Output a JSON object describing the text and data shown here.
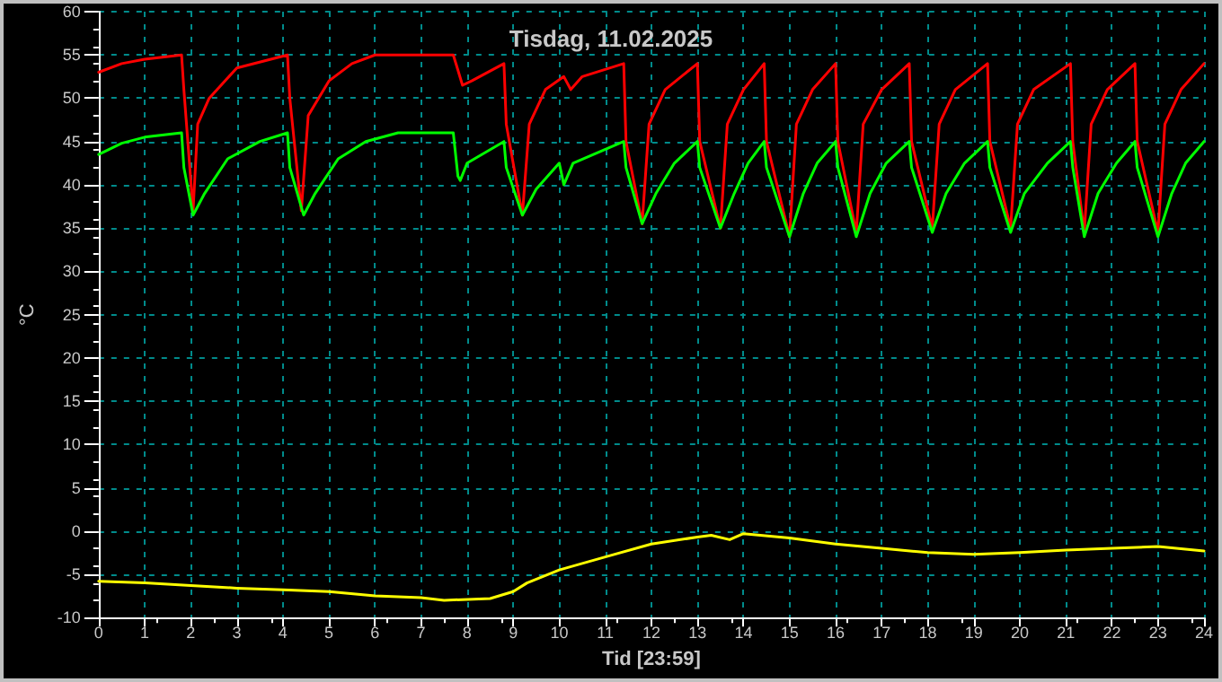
{
  "chart_data": {
    "type": "line",
    "title": "Tisdag, 11.02.2025",
    "xlabel": "Tid [23:59]",
    "ylabel": "°C",
    "xlim": [
      0,
      24
    ],
    "xticks": [
      0,
      1,
      2,
      3,
      4,
      5,
      6,
      7,
      8,
      9,
      10,
      11,
      12,
      13,
      14,
      15,
      16,
      17,
      18,
      19,
      20,
      21,
      22,
      23,
      24
    ],
    "ylim": [
      -10,
      60
    ],
    "yticks": [
      -10,
      -5,
      0,
      5,
      10,
      15,
      20,
      25,
      30,
      35,
      40,
      45,
      50,
      55,
      60
    ],
    "grid": true,
    "marker": "none",
    "line_style": "solid",
    "series": [
      {
        "color": "#ff0000",
        "x": [
          0,
          0.5,
          1,
          1.8,
          1.85,
          2.05,
          2.15,
          2.4,
          3,
          4.1,
          4.15,
          4.4,
          4.55,
          5,
          5.5,
          6,
          7.7,
          7.9,
          8.1,
          8.8,
          8.85,
          9.2,
          9.35,
          9.7,
          10.1,
          10.25,
          10.5,
          11.4,
          11.45,
          11.8,
          11.95,
          12.3,
          13,
          13.05,
          13.5,
          13.65,
          14,
          14.45,
          14.5,
          15,
          15.15,
          15.5,
          16,
          16.05,
          16.45,
          16.6,
          17,
          17.6,
          17.65,
          18.1,
          18.25,
          18.6,
          19.3,
          19.35,
          19.8,
          19.95,
          20.3,
          21.1,
          21.15,
          21.4,
          21.55,
          21.9,
          22.5,
          22.55,
          23,
          23.15,
          23.5,
          24
        ],
        "values": [
          53,
          54,
          54.5,
          55,
          51,
          37,
          47,
          50,
          53.5,
          55,
          50,
          37,
          48,
          52,
          54,
          55,
          55,
          51.5,
          52,
          54,
          47,
          36.5,
          47,
          51,
          52.5,
          51,
          52.5,
          54,
          45,
          35.5,
          47,
          51,
          54,
          45,
          35,
          47,
          51,
          54,
          45,
          34,
          47,
          51,
          54,
          45,
          34.5,
          47,
          51,
          54,
          45,
          35,
          47,
          51,
          54,
          45,
          35,
          47,
          51,
          54,
          45,
          34.5,
          47,
          51,
          54,
          45,
          34.5,
          47,
          51,
          54
        ]
      },
      {
        "color": "#00ff00",
        "x": [
          0,
          0.5,
          1,
          1.8,
          1.85,
          2.05,
          2.3,
          2.8,
          3.5,
          4.1,
          4.15,
          4.45,
          4.7,
          5.2,
          5.8,
          6.5,
          7.7,
          7.8,
          7.85,
          8,
          8.8,
          8.85,
          9.2,
          9.5,
          10,
          10.1,
          10.3,
          11.4,
          11.45,
          11.8,
          12.1,
          12.5,
          13,
          13.05,
          13.5,
          13.8,
          14.1,
          14.45,
          14.5,
          15,
          15.3,
          15.6,
          16,
          16.05,
          16.45,
          16.75,
          17.1,
          17.6,
          17.65,
          18.1,
          18.4,
          18.8,
          19.3,
          19.35,
          19.8,
          20.1,
          20.6,
          21.1,
          21.15,
          21.4,
          21.7,
          22.1,
          22.5,
          22.55,
          23,
          23.3,
          23.6,
          24
        ],
        "values": [
          43.5,
          44.8,
          45.5,
          46,
          42,
          36.5,
          39,
          43,
          45,
          46,
          42,
          36.5,
          39,
          43,
          45,
          46,
          46,
          41,
          40.5,
          42.5,
          45,
          42,
          36.5,
          39.5,
          42.5,
          40,
          42.5,
          45,
          42,
          35.5,
          39,
          42.5,
          45,
          42,
          35,
          39,
          42.5,
          45,
          42,
          34,
          39,
          42.5,
          45,
          42,
          34,
          39,
          42.5,
          45,
          42,
          34.5,
          39,
          42.5,
          45,
          42,
          34.5,
          39,
          42.5,
          45,
          42,
          34,
          39,
          42.5,
          45,
          42,
          34,
          39,
          42.5,
          45
        ]
      },
      {
        "color": "#ffff00",
        "x": [
          0,
          1,
          2,
          3,
          4,
          5,
          6,
          7,
          7.5,
          8.5,
          9,
          9.3,
          10,
          11,
          12,
          13,
          13.3,
          13.7,
          14,
          15,
          16,
          17,
          18,
          19,
          20,
          21,
          22,
          23,
          24
        ],
        "values": [
          -5.8,
          -6,
          -6.3,
          -6.6,
          -6.8,
          -7,
          -7.5,
          -7.7,
          -8,
          -7.8,
          -7,
          -6,
          -4.5,
          -3,
          -1.5,
          -0.7,
          -0.5,
          -1,
          -0.3,
          -0.8,
          -1.5,
          -2,
          -2.5,
          -2.7,
          -2.5,
          -2.2,
          -2,
          -1.8,
          -2.3
        ]
      }
    ]
  }
}
